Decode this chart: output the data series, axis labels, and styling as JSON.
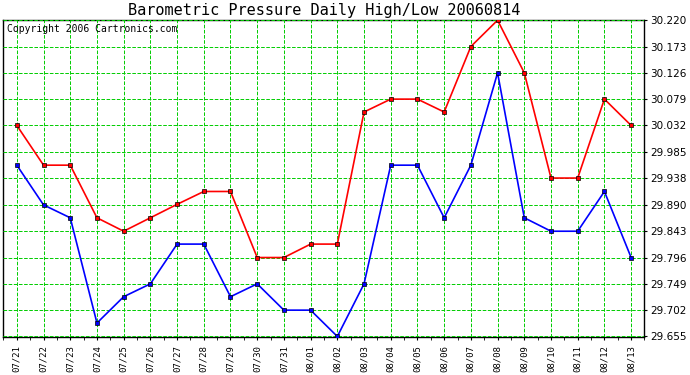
{
  "title": "Barometric Pressure Daily High/Low 20060814",
  "copyright": "Copyright 2006 Cartronics.com",
  "x_labels": [
    "07/21",
    "07/22",
    "07/23",
    "07/24",
    "07/25",
    "07/26",
    "07/27",
    "07/28",
    "07/29",
    "07/30",
    "07/31",
    "08/01",
    "08/02",
    "08/03",
    "08/04",
    "08/05",
    "08/06",
    "08/07",
    "08/08",
    "08/09",
    "08/10",
    "08/11",
    "08/12",
    "08/13"
  ],
  "high_values": [
    30.032,
    29.961,
    29.961,
    29.867,
    29.843,
    29.867,
    29.891,
    29.914,
    29.914,
    29.796,
    29.796,
    29.82,
    29.82,
    30.056,
    30.079,
    30.079,
    30.056,
    30.173,
    30.22,
    30.126,
    29.938,
    29.938,
    30.079,
    30.032
  ],
  "low_values": [
    29.961,
    29.89,
    29.867,
    29.679,
    29.726,
    29.749,
    29.82,
    29.82,
    29.726,
    29.749,
    29.702,
    29.702,
    29.655,
    29.749,
    29.961,
    29.961,
    29.867,
    29.961,
    30.126,
    29.867,
    29.843,
    29.843,
    29.914,
    29.796
  ],
  "high_color": "#ff0000",
  "low_color": "#0000ff",
  "marker_color": "#000000",
  "grid_color": "#00cc00",
  "bg_color": "#ffffff",
  "plot_bg_color": "#ffffff",
  "title_fontsize": 11,
  "copyright_fontsize": 7,
  "y_min": 29.655,
  "y_max": 30.22,
  "y_ticks": [
    29.655,
    29.702,
    29.749,
    29.796,
    29.843,
    29.89,
    29.938,
    29.985,
    30.032,
    30.079,
    30.126,
    30.173,
    30.22
  ]
}
